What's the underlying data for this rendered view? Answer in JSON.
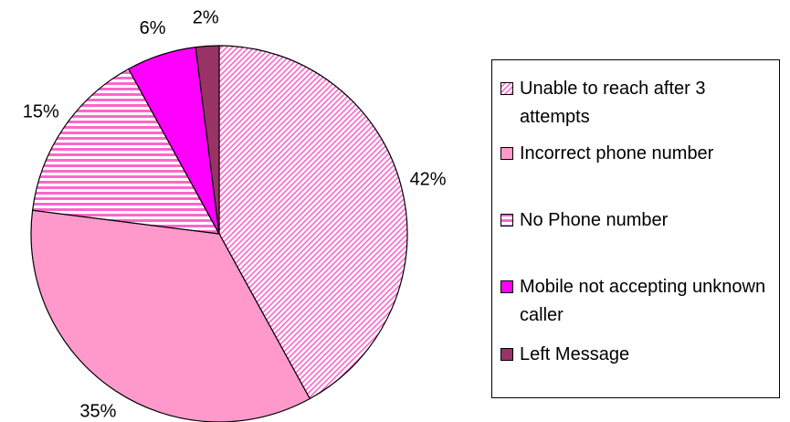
{
  "chart_data": {
    "type": "pie",
    "categories": [
      "Unable to reach after 3 attempts",
      "Incorrect phone number",
      "No Phone number",
      "Mobile not accepting unknown caller",
      "Left Message"
    ],
    "values": [
      42,
      35,
      15,
      6,
      2
    ],
    "value_labels": [
      "42%",
      "35%",
      "15%",
      "6%",
      "2%"
    ],
    "colors": [
      "#ff66cc",
      "#ff99cc",
      "#ff66cc",
      "#ff00ff",
      "#993366"
    ],
    "patterns": [
      "diagonal",
      "solid",
      "horizontal",
      "solid",
      "solid"
    ],
    "legend": "right"
  }
}
